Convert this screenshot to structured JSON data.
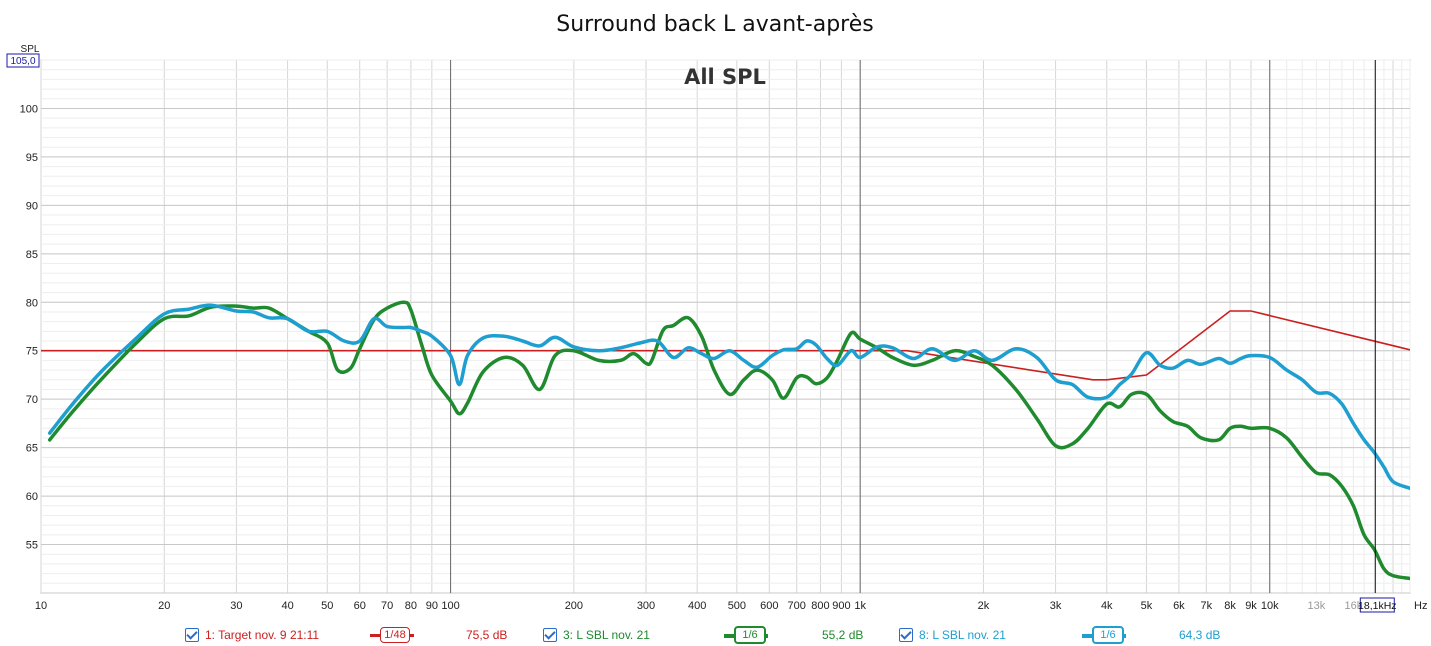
{
  "window": {
    "title": "Surround back L avant-après"
  },
  "colors": {
    "target": "#cc1f1f",
    "before": "#1f8a2e",
    "after": "#1e9fd0",
    "grid_major": "#6a6a6a",
    "grid_minor": "#d6d6d6"
  },
  "legend": [
    {
      "index_label": "1: Target nov. 9 21:11",
      "smoothing": "1/48",
      "level": "75,5 dB",
      "color": "#cc1f1f"
    },
    {
      "index_label": "3: L SBL nov. 21",
      "smoothing": "1/6",
      "level": "55,2 dB",
      "color": "#1f8a2e"
    },
    {
      "index_label": "8: L SBL nov. 21",
      "smoothing": "1/6",
      "level": "64,3 dB",
      "color": "#1e9fd0"
    }
  ],
  "cursor": {
    "freq_label": "18,1kHz",
    "y_readout": "105,0"
  },
  "chart_data": {
    "type": "line",
    "title": "Surround back L avant-après",
    "subtitle": "All SPL",
    "ylabel": "SPL",
    "xlabel": "Hz",
    "x_scale": "log",
    "xlim": [
      10,
      22000
    ],
    "ylim": [
      50,
      105
    ],
    "yticks": [
      55,
      60,
      65,
      70,
      75,
      80,
      85,
      90,
      95,
      100
    ],
    "xticks_major": [
      {
        "v": 10,
        "label": "10"
      },
      {
        "v": 20,
        "label": "20"
      },
      {
        "v": 30,
        "label": "30"
      },
      {
        "v": 40,
        "label": "40"
      },
      {
        "v": 50,
        "label": "50"
      },
      {
        "v": 60,
        "label": "60"
      },
      {
        "v": 70,
        "label": "70"
      },
      {
        "v": 80,
        "label": "80"
      },
      {
        "v": 90,
        "label": "90"
      },
      {
        "v": 100,
        "label": "100"
      },
      {
        "v": 200,
        "label": "200"
      },
      {
        "v": 300,
        "label": "300"
      },
      {
        "v": 400,
        "label": "400"
      },
      {
        "v": 500,
        "label": "500"
      },
      {
        "v": 600,
        "label": "600"
      },
      {
        "v": 700,
        "label": "700"
      },
      {
        "v": 800,
        "label": "800"
      },
      {
        "v": 900,
        "label": "900"
      },
      {
        "v": 1000,
        "label": "1k"
      },
      {
        "v": 2000,
        "label": "2k"
      },
      {
        "v": 3000,
        "label": "3k"
      },
      {
        "v": 4000,
        "label": "4k"
      },
      {
        "v": 5000,
        "label": "5k"
      },
      {
        "v": 6000,
        "label": "6k"
      },
      {
        "v": 7000,
        "label": "7k"
      },
      {
        "v": 8000,
        "label": "8k"
      },
      {
        "v": 9000,
        "label": "9k"
      },
      {
        "v": 10000,
        "label": "10k"
      },
      {
        "v": 13000,
        "label": "13k",
        "minor": true
      },
      {
        "v": 16000,
        "label": "16k",
        "minor": true
      }
    ],
    "cursor_x": 18100,
    "grid": true,
    "series": [
      {
        "name": "1: Target nov. 9 21:11",
        "color": "#cc1f1f",
        "width": 1.6,
        "x": [
          10,
          1300,
          3700,
          4000,
          5000,
          8000,
          9000,
          22000
        ],
        "y": [
          75,
          75,
          72,
          72,
          72.5,
          79.1,
          79.1,
          75.1
        ]
      },
      {
        "name": "3: L SBL nov. 21",
        "color": "#1f8a2e",
        "width": 3.5,
        "x": [
          10.5,
          12,
          14,
          17,
          20,
          23,
          26,
          30,
          33,
          36,
          40,
          45,
          50,
          53,
          57,
          60,
          65,
          70,
          77,
          80,
          85,
          90,
          100,
          105,
          110,
          120,
          135,
          150,
          165,
          180,
          200,
          230,
          260,
          280,
          300,
          310,
          330,
          350,
          380,
          410,
          440,
          480,
          520,
          560,
          610,
          650,
          700,
          740,
          780,
          830,
          880,
          950,
          1000,
          1100,
          1200,
          1350,
          1500,
          1700,
          1900,
          2100,
          2400,
          2700,
          3000,
          3300,
          3600,
          4000,
          4300,
          4600,
          5000,
          5400,
          5800,
          6300,
          6800,
          7500,
          8000,
          8500,
          9000,
          10000,
          11000,
          12000,
          13000,
          14000,
          15000,
          16000,
          17000,
          18000,
          19000,
          20000,
          22000
        ],
        "y": [
          65.8,
          68.8,
          72,
          75.7,
          78.3,
          78.6,
          79.5,
          79.6,
          79.4,
          79.4,
          78.3,
          77,
          75.8,
          73,
          73.2,
          75.2,
          78.2,
          79.4,
          80,
          79.2,
          75.6,
          72.5,
          69.8,
          68.5,
          69.6,
          72.8,
          74.3,
          73.5,
          71.0,
          74.5,
          75.0,
          74.0,
          74.0,
          74.7,
          73.7,
          74.0,
          77.1,
          77.6,
          78.4,
          76.5,
          73.0,
          70.5,
          72.0,
          73.0,
          72.0,
          70.1,
          72.2,
          72.3,
          71.6,
          72.2,
          74.0,
          76.8,
          76.2,
          75.3,
          74.3,
          73.5,
          74.0,
          75.0,
          74.4,
          73.5,
          71.0,
          68.0,
          65.2,
          65.4,
          67.0,
          69.5,
          69.2,
          70.5,
          70.5,
          68.8,
          67.7,
          67.2,
          66.0,
          65.8,
          67.0,
          67.2,
          67.0,
          67.0,
          66.0,
          64.0,
          62.4,
          62.2,
          61.0,
          59.0,
          56.0,
          54.5,
          52.5,
          51.8,
          51.5
        ]
      },
      {
        "name": "8: L SBL nov. 21",
        "color": "#1e9fd0",
        "width": 3.5,
        "x": [
          10.5,
          12,
          14,
          17,
          20,
          23,
          26,
          30,
          33,
          36,
          40,
          45,
          50,
          55,
          60,
          65,
          70,
          77,
          80,
          85,
          90,
          100,
          105,
          110,
          120,
          135,
          150,
          165,
          180,
          200,
          230,
          260,
          290,
          320,
          350,
          380,
          410,
          440,
          480,
          520,
          560,
          610,
          650,
          700,
          740,
          780,
          830,
          880,
          950,
          1000,
          1100,
          1200,
          1350,
          1500,
          1700,
          1900,
          2100,
          2400,
          2700,
          3000,
          3300,
          3600,
          4000,
          4300,
          4600,
          5000,
          5400,
          5800,
          6300,
          6800,
          7500,
          8000,
          8500,
          9000,
          10000,
          11000,
          12000,
          13000,
          14000,
          15000,
          16000,
          17000,
          18000,
          19000,
          20000,
          22000
        ],
        "y": [
          66.5,
          69.6,
          72.8,
          76.2,
          78.8,
          79.3,
          79.7,
          79.1,
          79.0,
          78.4,
          78.3,
          77.0,
          77.0,
          76.0,
          76.0,
          78.3,
          77.5,
          77.4,
          77.4,
          77.0,
          76.5,
          74.5,
          71.5,
          74.5,
          76.3,
          76.5,
          76.0,
          75.5,
          76.4,
          75.4,
          75.0,
          75.3,
          75.8,
          76.0,
          74.3,
          75.3,
          74.7,
          74.2,
          75.0,
          74.0,
          73.3,
          74.5,
          75.1,
          75.2,
          76.0,
          75.6,
          74.2,
          73.5,
          75.0,
          74.3,
          75.4,
          75.3,
          74.2,
          75.2,
          74.0,
          75.0,
          74.0,
          75.2,
          74.3,
          72.0,
          71.5,
          70.2,
          70.2,
          71.5,
          72.6,
          74.8,
          73.5,
          73.2,
          74.0,
          73.6,
          74.2,
          73.7,
          74.2,
          74.5,
          74.3,
          73.0,
          72.0,
          70.7,
          70.6,
          69.5,
          67.5,
          65.8,
          64.5,
          63.0,
          61.5,
          60.8
        ]
      }
    ]
  }
}
